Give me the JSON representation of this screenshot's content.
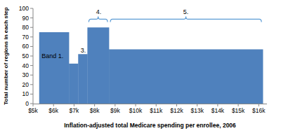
{
  "chart_data": {
    "type": "histogram",
    "xlabel": "Inflation-adjusted total Medicare spending per enrollee, 2006",
    "ylabel": "Total number of regions in each step",
    "bins": [
      5.3,
      6.75,
      7.2,
      7.65,
      8.7,
      16.2
    ],
    "values": [
      75,
      42,
      52,
      80,
      57
    ],
    "color": "#4f81bd",
    "xlim": [
      5,
      16.4
    ],
    "xticks": [
      {
        "value": 5,
        "label": "$5k"
      },
      {
        "value": 6,
        "label": "$6k"
      },
      {
        "value": 7,
        "label": "$7k"
      },
      {
        "value": 8,
        "label": "$8k"
      },
      {
        "value": 9,
        "label": "$9k"
      },
      {
        "value": 10,
        "label": "$10k"
      },
      {
        "value": 11,
        "label": "$11k"
      },
      {
        "value": 12,
        "label": "$12k"
      },
      {
        "value": 13,
        "label": "$13k"
      },
      {
        "value": 14,
        "label": "$14k"
      },
      {
        "value": 15,
        "label": "$15k"
      },
      {
        "value": 16,
        "label": "$16k"
      }
    ],
    "ylim": [
      0,
      100
    ],
    "yticks": [
      0,
      10,
      20,
      30,
      40,
      50,
      60,
      70,
      80,
      90,
      100
    ],
    "grid": false,
    "annotations": [
      {
        "text": "Band 1.",
        "x": 5.95,
        "y": 50
      },
      {
        "text": "3.",
        "x": 7.45,
        "y": 56
      },
      {
        "text": "4.",
        "x": 8.2,
        "y": 96
      },
      {
        "text": "5.",
        "x": 12.45,
        "y": 96
      }
    ]
  }
}
